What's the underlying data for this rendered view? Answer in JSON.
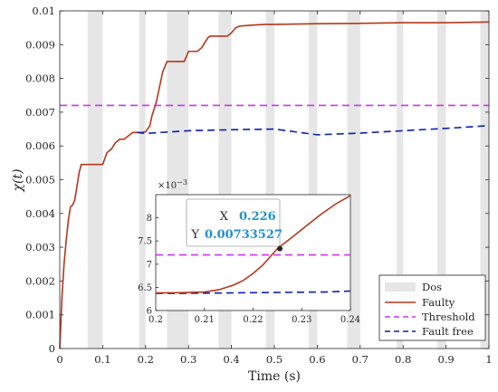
{
  "chart_data": {
    "type": "line",
    "xlabel": "Time (s)",
    "ylabel": "χ(t)",
    "xlim": [
      0,
      1
    ],
    "ylim": [
      0,
      0.01
    ],
    "xticks": [
      0,
      0.1,
      0.2,
      0.3,
      0.4,
      0.5,
      0.6,
      0.7,
      0.8,
      0.9,
      1
    ],
    "xtick_labels": [
      "0",
      "0.1",
      "0.2",
      "0.3",
      "0.4",
      "0.5",
      "0.6",
      "0.7",
      "0.8",
      "0.9",
      "1"
    ],
    "yticks": [
      0,
      0.001,
      0.002,
      0.003,
      0.004,
      0.005,
      0.006,
      0.007,
      0.008,
      0.009,
      0.01
    ],
    "ytick_labels": [
      "0",
      "0.001",
      "0.002",
      "0.003",
      "0.004",
      "0.005",
      "0.006",
      "0.007",
      "0.008",
      "0.009",
      "0.01"
    ],
    "grid": false,
    "legend_position": "bottom-right",
    "dos_intervals": [
      [
        0.065,
        0.1
      ],
      [
        0.185,
        0.2
      ],
      [
        0.25,
        0.3
      ],
      [
        0.37,
        0.4
      ],
      [
        0.48,
        0.5
      ],
      [
        0.58,
        0.6
      ],
      [
        0.67,
        0.7
      ],
      [
        0.785,
        0.8
      ],
      [
        0.88,
        0.9
      ],
      [
        0.98,
        1.0
      ]
    ],
    "series": [
      {
        "name": "Dos",
        "kind": "band",
        "color": "#e6e6e6"
      },
      {
        "name": "Faulty",
        "kind": "line",
        "color": "#b5371b",
        "x": [
          0,
          0.005,
          0.01,
          0.015,
          0.02,
          0.025,
          0.03,
          0.035,
          0.04,
          0.045,
          0.05,
          0.055,
          0.065,
          0.08,
          0.1,
          0.11,
          0.12,
          0.13,
          0.14,
          0.15,
          0.16,
          0.17,
          0.175,
          0.18,
          0.19,
          0.2,
          0.21,
          0.215,
          0.22,
          0.225,
          0.23,
          0.24,
          0.25,
          0.26,
          0.27,
          0.28,
          0.29,
          0.3,
          0.31,
          0.32,
          0.33,
          0.34,
          0.345,
          0.35,
          0.36,
          0.39,
          0.4,
          0.41,
          0.42,
          0.45,
          0.48,
          0.5,
          0.6,
          0.7,
          0.8,
          0.9,
          1.0
        ],
        "y": [
          0,
          0.0015,
          0.0025,
          0.0032,
          0.0038,
          0.0042,
          0.00425,
          0.0044,
          0.0048,
          0.0052,
          0.00545,
          0.00545,
          0.00545,
          0.00545,
          0.00545,
          0.0058,
          0.0059,
          0.0061,
          0.0062,
          0.0062,
          0.0063,
          0.0064,
          0.0064,
          0.0064,
          0.0064,
          0.00642,
          0.0066,
          0.0069,
          0.0071,
          0.0073,
          0.0076,
          0.0082,
          0.0085,
          0.0085,
          0.0085,
          0.0085,
          0.0085,
          0.0088,
          0.0088,
          0.0088,
          0.0089,
          0.0091,
          0.0092,
          0.00925,
          0.00925,
          0.00925,
          0.00935,
          0.0095,
          0.00955,
          0.00958,
          0.0096,
          0.0096,
          0.00962,
          0.00963,
          0.00965,
          0.00965,
          0.00967
        ]
      },
      {
        "name": "Threshold",
        "kind": "line",
        "color": "#cc33ee",
        "dash": true,
        "x": [
          0,
          1
        ],
        "y": [
          0.0072,
          0.0072
        ]
      },
      {
        "name": "Fault free",
        "kind": "line",
        "color": "#0a1fb0",
        "dash": true,
        "x": [
          0.18,
          0.2,
          0.3,
          0.4,
          0.5,
          0.6,
          0.7,
          0.8,
          0.9,
          1.0
        ],
        "y": [
          0.0064,
          0.00637,
          0.00645,
          0.00648,
          0.0065,
          0.00633,
          0.00638,
          0.00645,
          0.00652,
          0.0066
        ]
      }
    ],
    "inset": {
      "xlim": [
        0.2,
        0.24
      ],
      "ylim": [
        6,
        8.5
      ],
      "yscale_label": "×10",
      "yscale_exp": "−3",
      "xticks": [
        0.2,
        0.21,
        0.22,
        0.23,
        0.24
      ],
      "xtick_labels": [
        "0.2",
        "0.21",
        "0.22",
        "0.23",
        "0.24"
      ],
      "yticks": [
        6,
        6.5,
        7,
        7.5,
        8
      ],
      "ytick_labels": [
        "6",
        "6.5",
        "7",
        "7.5",
        "8"
      ],
      "faulty": {
        "x": [
          0.2,
          0.205,
          0.21,
          0.213,
          0.216,
          0.218,
          0.22,
          0.222,
          0.225,
          0.228,
          0.231,
          0.234,
          0.237,
          0.24
        ],
        "y": [
          6.38,
          6.385,
          6.4,
          6.45,
          6.55,
          6.65,
          6.8,
          6.98,
          7.335,
          7.58,
          7.83,
          8.08,
          8.3,
          8.48
        ]
      },
      "threshold": {
        "x": [
          0.2,
          0.24
        ],
        "y": [
          7.2,
          7.2
        ]
      },
      "fault_free": {
        "x": [
          0.2,
          0.205,
          0.21,
          0.215,
          0.22,
          0.225,
          0.23,
          0.235,
          0.24
        ],
        "y": [
          6.37,
          6.37,
          6.375,
          6.38,
          6.385,
          6.39,
          6.395,
          6.4,
          6.42
        ]
      },
      "datatip": {
        "x_label": "X",
        "x_value": "0.226",
        "y_label": "Y",
        "y_value": "0.00733527",
        "x": 0.2255,
        "y": 7.335
      }
    }
  }
}
